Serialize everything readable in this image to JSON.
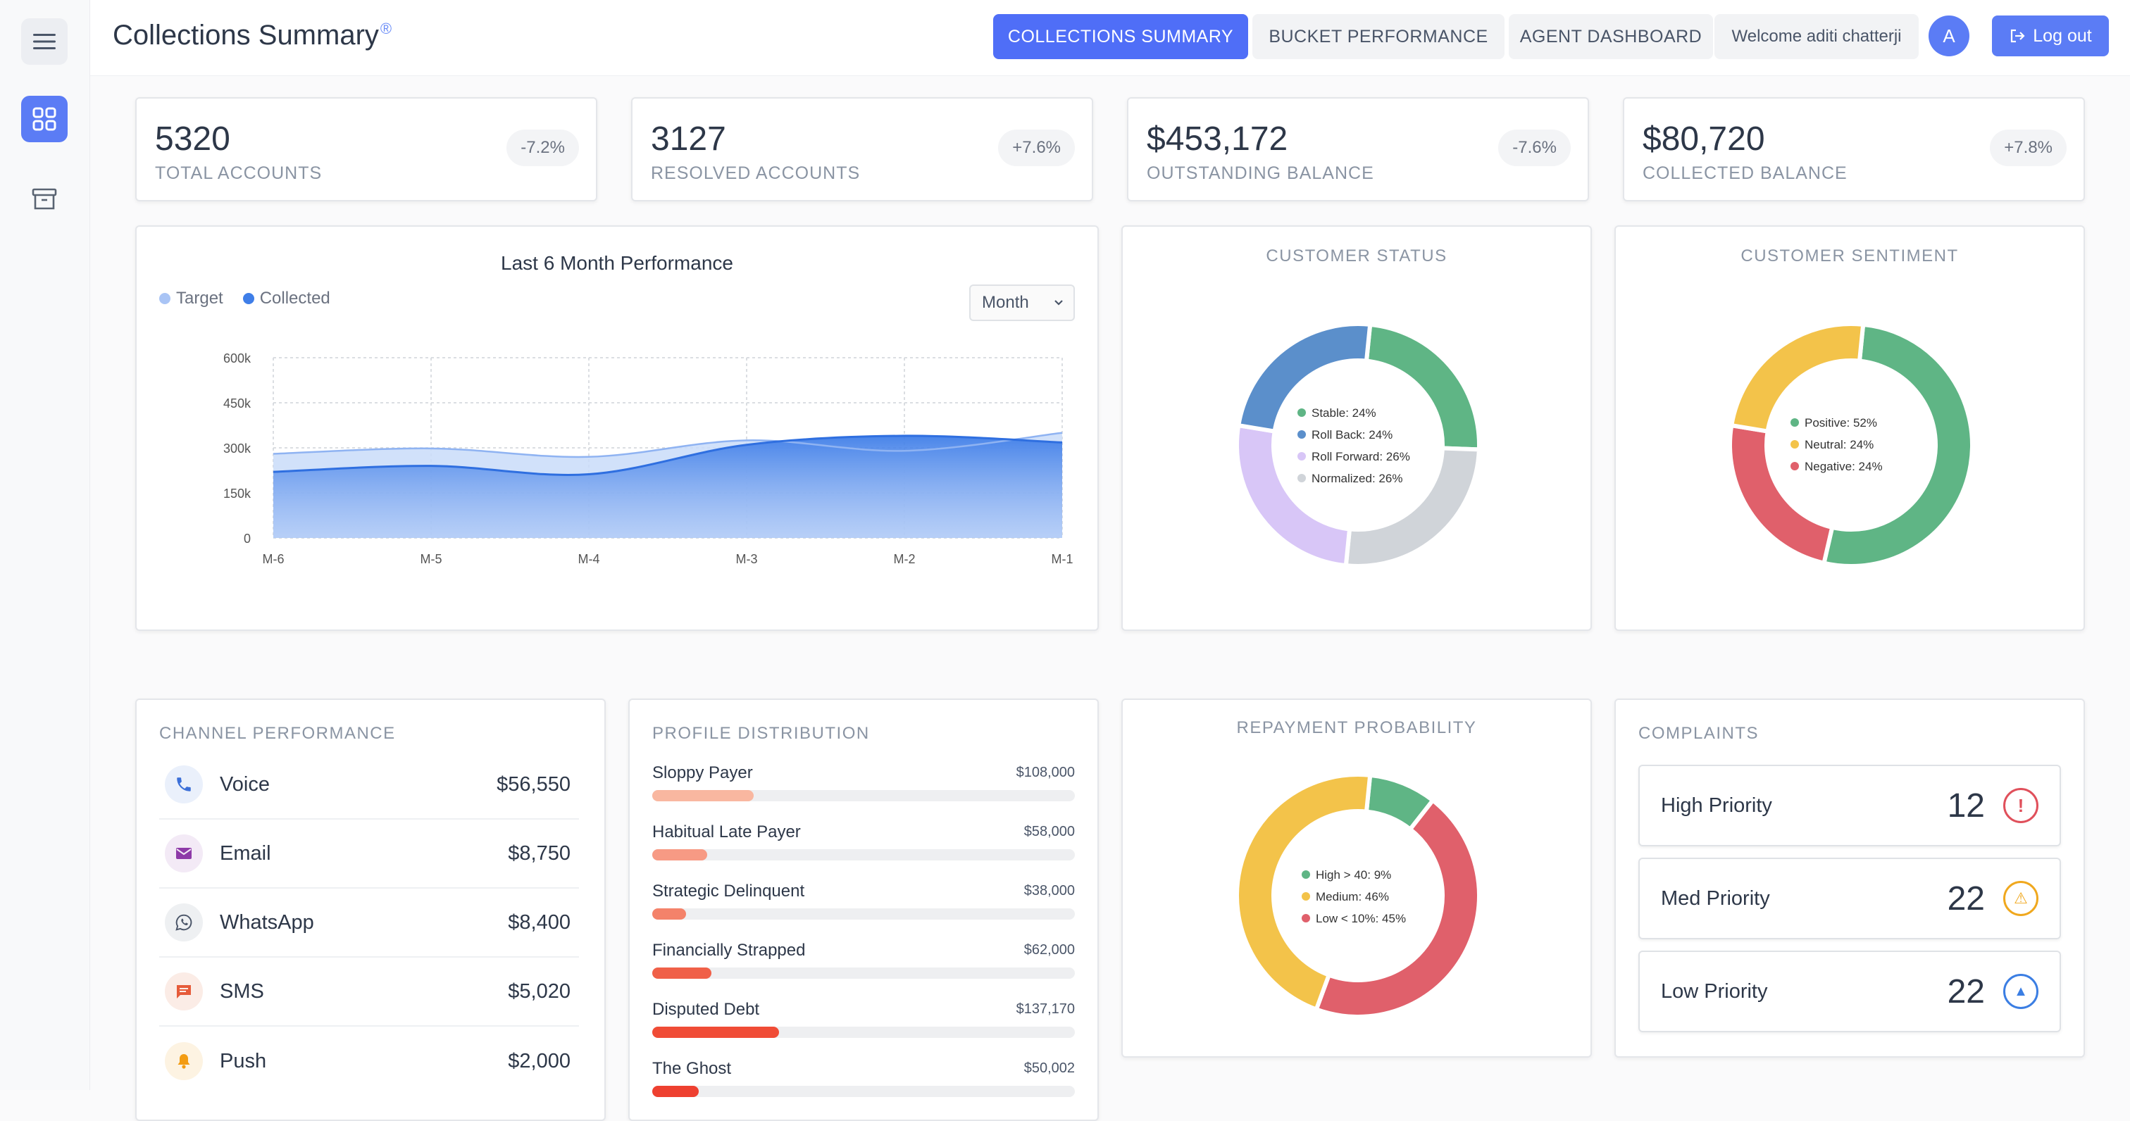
{
  "header": {
    "title": "Collections Summary",
    "title_mark": "®",
    "tabs": [
      {
        "label": "COLLECTIONS SUMMARY",
        "active": true
      },
      {
        "label": "BUCKET PERFORMANCE",
        "active": false
      },
      {
        "label": "AGENT DASHBOARD",
        "active": false
      }
    ],
    "welcome": "Welcome aditi chatterji",
    "avatar_initial": "A",
    "logout_label": "Log out"
  },
  "sidebar": {
    "items": [
      {
        "icon": "hamburger-menu-icon"
      },
      {
        "icon": "grid-icon",
        "active": true
      },
      {
        "icon": "archive-icon"
      }
    ]
  },
  "kpis": [
    {
      "value": "5320",
      "label": "TOTAL ACCOUNTS",
      "delta": "-7.2%"
    },
    {
      "value": "3127",
      "label": "RESOLVED ACCOUNTS",
      "delta": "+7.6%"
    },
    {
      "value": "$453,172",
      "label": "OUTSTANDING BALANCE",
      "delta": "-7.6%"
    },
    {
      "value": "$80,720",
      "label": "COLLECTED BALANCE",
      "delta": "+7.8%"
    }
  ],
  "performance": {
    "title": "Last 6 Month Performance",
    "period_select": "Month",
    "chart_data": {
      "type": "area",
      "title": "Last 6 Month Performance",
      "categories": [
        "M-6",
        "M-5",
        "M-4",
        "M-3",
        "M-2",
        "M-1"
      ],
      "ylim": [
        0,
        600000
      ],
      "yticks": [
        "0",
        "150k",
        "300k",
        "450k",
        "600k"
      ],
      "grid": true,
      "legend": "top-left",
      "series": [
        {
          "name": "Target",
          "color": "#a9c4f5",
          "values": [
            280000,
            298000,
            270000,
            325000,
            290000,
            350000
          ]
        },
        {
          "name": "Collected",
          "color": "#3f7ee8",
          "values": [
            220000,
            240000,
            212000,
            310000,
            340000,
            318000
          ]
        }
      ]
    }
  },
  "customer_status": {
    "title": "CUSTOMER STATUS",
    "chart_data": {
      "type": "pie",
      "labels": [
        "Stable",
        "Roll Back",
        "Roll Forward",
        "Normalized"
      ],
      "values": [
        24,
        24,
        26,
        26
      ],
      "legend_text": [
        "Stable: 24%",
        "Roll Back: 24%",
        "Roll Forward: 26%",
        "Normalized: 26%"
      ],
      "colors": [
        "#5fb585",
        "#5b8fcb",
        "#d8c6f7",
        "#d0d4d9"
      ],
      "draw_order": [
        0,
        3,
        2,
        1
      ]
    }
  },
  "customer_sentiment": {
    "title": "CUSTOMER SENTIMENT",
    "chart_data": {
      "type": "pie",
      "labels": [
        "Positive",
        "Neutral",
        "Negative"
      ],
      "values": [
        52,
        24,
        24
      ],
      "legend_text": [
        "Positive: 52%",
        "Neutral: 24%",
        "Negative: 24%"
      ],
      "colors": [
        "#5fb585",
        "#f3c34a",
        "#e0606b"
      ],
      "draw_order": [
        0,
        2,
        1
      ]
    }
  },
  "channel_performance": {
    "title": "CHANNEL PERFORMANCE",
    "items": [
      {
        "name": "Voice",
        "amount": "$56,550",
        "icon": "phone-icon",
        "color": "#3b6fd8",
        "bg": "#eaf0fb"
      },
      {
        "name": "Email",
        "amount": "$8,750",
        "icon": "envelope-icon",
        "color": "#8e3aa8",
        "bg": "#f3eaf6"
      },
      {
        "name": "WhatsApp",
        "amount": "$8,400",
        "icon": "whatsapp-icon",
        "color": "#4a5568",
        "bg": "#eef0f2"
      },
      {
        "name": "SMS",
        "amount": "$5,020",
        "icon": "message-icon",
        "color": "#e65b3a",
        "bg": "#fbece6"
      },
      {
        "name": "Push",
        "amount": "$2,000",
        "icon": "bell-icon",
        "color": "#f39c12",
        "bg": "#fdf3e2"
      }
    ]
  },
  "profile_distribution": {
    "title": "PROFILE DISTRIBUTION",
    "items": [
      {
        "name": "Sloppy Payer",
        "amount": "$108,000",
        "fill": 0.24,
        "color": "#f9b7a0"
      },
      {
        "name": "Habitual Late Payer",
        "amount": "$58,000",
        "fill": 0.13,
        "color": "#f79a84"
      },
      {
        "name": "Strategic Delinquent",
        "amount": "$38,000",
        "fill": 0.08,
        "color": "#f4826a"
      },
      {
        "name": "Financially Strapped",
        "amount": "$62,000",
        "fill": 0.14,
        "color": "#f06048"
      },
      {
        "name": "Disputed Debt",
        "amount": "$137,170",
        "fill": 0.3,
        "color": "#f04c36"
      },
      {
        "name": "The Ghost",
        "amount": "$50,002",
        "fill": 0.11,
        "color": "#ee4030"
      }
    ]
  },
  "repayment_probability": {
    "title": "REPAYMENT PROBABILITY",
    "chart_data": {
      "type": "pie",
      "labels": [
        "High > 40",
        "Medium",
        "Low < 10%"
      ],
      "values": [
        9,
        46,
        45
      ],
      "legend_text": [
        "High > 40: 9%",
        "Medium: 46%",
        "Low < 10%: 45%"
      ],
      "colors": [
        "#5fb585",
        "#f3c34a",
        "#e0606b"
      ],
      "draw_order": [
        0,
        2,
        1
      ]
    }
  },
  "complaints": {
    "title": "COMPLAINTS",
    "items": [
      {
        "name": "High Priority",
        "count": "12",
        "icon": "alert-circle-icon",
        "glyph": "!",
        "color": "#e0505b"
      },
      {
        "name": "Med Priority",
        "count": "22",
        "icon": "warning-triangle-icon",
        "glyph": "⚠",
        "color": "#f0a81e"
      },
      {
        "name": "Low Priority",
        "count": "22",
        "icon": "up-arrow-circle-icon",
        "glyph": "▲",
        "color": "#3b7ee3"
      }
    ]
  }
}
